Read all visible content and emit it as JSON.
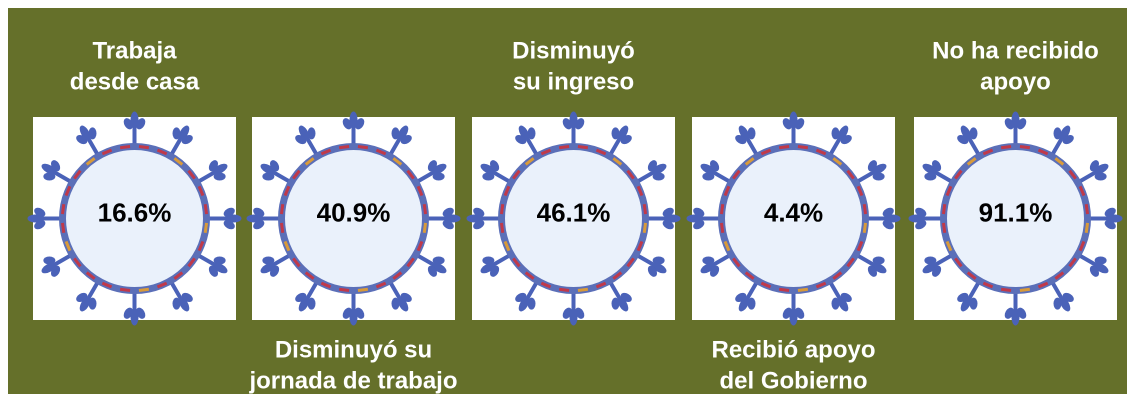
{
  "panels": [
    {
      "label": [
        "Trabaja",
        "desde casa"
      ],
      "value": "16.6%"
    },
    {
      "label": [
        "Disminuyó su",
        "jornada de trabajo"
      ],
      "value": "40.9%"
    },
    {
      "label": [
        "Disminuyó",
        "su ingreso"
      ],
      "value": "46.1%"
    },
    {
      "label": [
        "Recibió apoyo",
        "del Gobierno"
      ],
      "value": "4.4%"
    },
    {
      "label": [
        "No ha recibido",
        "apoyo"
      ],
      "value": "91.1%"
    }
  ]
}
